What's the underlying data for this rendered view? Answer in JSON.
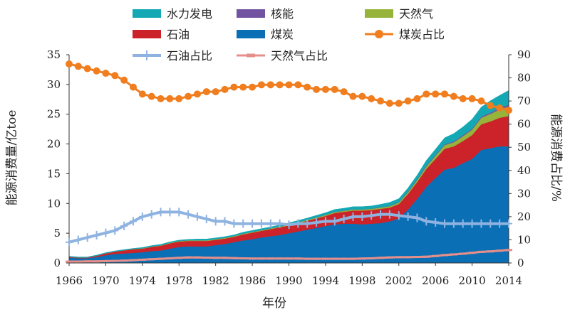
{
  "chart_data": {
    "type": "area",
    "xlabel": "年份",
    "ylabel_left": "能源消费量/亿toe",
    "ylabel_right": "能源消费占比/%",
    "ylim_left": [
      0,
      35
    ],
    "ylim_right": [
      0,
      90
    ],
    "xlim": [
      1966,
      2014
    ],
    "x_ticks": [
      1966,
      1970,
      1974,
      1978,
      1982,
      1986,
      1990,
      1994,
      1998,
      2002,
      2006,
      2010,
      2014
    ],
    "y_left_ticks": [
      0,
      5,
      10,
      15,
      20,
      25,
      30,
      35
    ],
    "y_right_ticks": [
      0,
      10,
      20,
      30,
      40,
      50,
      60,
      70,
      80,
      90
    ],
    "legend_position": "top",
    "years": [
      1966,
      1967,
      1968,
      1969,
      1970,
      1971,
      1972,
      1973,
      1974,
      1975,
      1976,
      1977,
      1978,
      1979,
      1980,
      1981,
      1982,
      1983,
      1984,
      1985,
      1986,
      1987,
      1988,
      1989,
      1990,
      1991,
      1992,
      1993,
      1994,
      1995,
      1996,
      1997,
      1998,
      1999,
      2000,
      2001,
      2002,
      2003,
      2004,
      2005,
      2006,
      2007,
      2008,
      2009,
      2010,
      2011,
      2012,
      2013,
      2014
    ],
    "stack_series": [
      {
        "name": "煤炭",
        "color": "#0a6fb5",
        "values": [
          0.9,
          0.8,
          0.8,
          1.0,
          1.3,
          1.5,
          1.6,
          1.7,
          1.8,
          2.0,
          2.1,
          2.4,
          2.7,
          2.8,
          2.8,
          2.8,
          3.0,
          3.2,
          3.5,
          3.8,
          4.0,
          4.3,
          4.5,
          4.7,
          5.0,
          5.3,
          5.6,
          5.9,
          6.2,
          6.5,
          6.6,
          6.6,
          6.5,
          6.6,
          6.7,
          7.0,
          7.5,
          9.0,
          10.8,
          12.8,
          14.3,
          15.7,
          16.0,
          16.8,
          17.5,
          19.0,
          19.3,
          19.6,
          19.6
        ]
      },
      {
        "name": "石油",
        "color": "#cc2229",
        "values": [
          0.1,
          0.1,
          0.1,
          0.2,
          0.3,
          0.4,
          0.5,
          0.6,
          0.6,
          0.7,
          0.8,
          0.9,
          0.9,
          0.9,
          0.9,
          0.9,
          0.9,
          0.9,
          0.9,
          1.0,
          1.1,
          1.1,
          1.2,
          1.3,
          1.3,
          1.4,
          1.5,
          1.6,
          1.7,
          1.9,
          2.0,
          2.2,
          2.3,
          2.3,
          2.4,
          2.3,
          2.4,
          2.6,
          2.8,
          3.0,
          3.2,
          3.5,
          3.6,
          3.7,
          4.0,
          4.3,
          4.5,
          4.8,
          5.1
        ]
      },
      {
        "name": "天然气",
        "color": "#96b43a",
        "values": [
          0.02,
          0.02,
          0.02,
          0.02,
          0.03,
          0.03,
          0.04,
          0.05,
          0.06,
          0.07,
          0.08,
          0.09,
          0.1,
          0.11,
          0.12,
          0.12,
          0.12,
          0.12,
          0.12,
          0.12,
          0.12,
          0.12,
          0.12,
          0.13,
          0.14,
          0.14,
          0.15,
          0.15,
          0.16,
          0.16,
          0.17,
          0.18,
          0.19,
          0.2,
          0.22,
          0.24,
          0.26,
          0.3,
          0.35,
          0.4,
          0.5,
          0.6,
          0.7,
          0.8,
          0.9,
          1.1,
          1.25,
          1.4,
          1.6
        ]
      },
      {
        "name": "核能",
        "color": "#7153a1",
        "values": [
          0,
          0,
          0,
          0,
          0,
          0,
          0,
          0,
          0,
          0,
          0,
          0,
          0,
          0,
          0,
          0,
          0,
          0,
          0,
          0,
          0,
          0,
          0,
          0,
          0,
          0,
          0,
          0,
          0.03,
          0.03,
          0.03,
          0.03,
          0.03,
          0.03,
          0.04,
          0.04,
          0.05,
          0.1,
          0.12,
          0.12,
          0.13,
          0.14,
          0.15,
          0.16,
          0.17,
          0.2,
          0.22,
          0.25,
          0.3
        ]
      },
      {
        "name": "水力发电",
        "color": "#13a8b4",
        "values": [
          0.1,
          0.1,
          0.1,
          0.1,
          0.1,
          0.1,
          0.1,
          0.1,
          0.15,
          0.15,
          0.15,
          0.15,
          0.15,
          0.15,
          0.2,
          0.2,
          0.2,
          0.2,
          0.2,
          0.25,
          0.25,
          0.25,
          0.25,
          0.25,
          0.3,
          0.3,
          0.3,
          0.35,
          0.35,
          0.4,
          0.4,
          0.45,
          0.45,
          0.45,
          0.5,
          0.6,
          0.6,
          0.6,
          0.7,
          0.9,
          1.0,
          1.1,
          1.3,
          1.4,
          1.6,
          1.6,
          2.0,
          2.1,
          2.4
        ]
      }
    ],
    "line_series": [
      {
        "name": "煤炭占比",
        "color": "#f07d1e",
        "marker": "circle",
        "values": [
          86,
          85,
          84,
          83,
          82,
          81,
          79,
          76,
          73,
          72,
          71,
          71,
          71,
          72,
          73,
          74,
          74,
          75,
          76,
          76,
          76,
          77,
          77,
          77,
          77,
          77,
          76,
          75,
          75,
          75,
          74,
          72,
          72,
          71,
          70,
          69,
          69,
          70,
          71,
          73,
          73,
          73,
          72,
          71,
          71,
          70,
          68,
          67,
          66
        ]
      },
      {
        "name": "石油占比",
        "color": "#8fb3e0",
        "marker": "plus",
        "values": [
          9,
          10,
          11,
          12,
          13,
          14,
          16,
          18,
          20,
          21,
          22,
          22,
          22,
          21,
          20,
          19,
          18,
          18,
          17,
          17,
          17,
          17,
          17,
          17,
          16.5,
          17,
          17,
          17.5,
          18,
          18,
          19,
          20,
          20,
          20.5,
          21,
          21,
          20.5,
          20,
          19.5,
          18,
          17.5,
          17,
          17,
          17,
          17,
          17,
          17,
          17,
          17
        ]
      },
      {
        "name": "天然气占比",
        "color": "#e58f8b",
        "marker": "dash",
        "values": [
          0.6,
          0.6,
          0.7,
          0.7,
          0.8,
          0.9,
          1.0,
          1.2,
          1.4,
          1.6,
          1.8,
          2.0,
          2.2,
          2.4,
          2.4,
          2.3,
          2.2,
          2.2,
          2.1,
          2.0,
          1.9,
          1.9,
          1.9,
          1.9,
          1.9,
          1.9,
          1.8,
          1.8,
          1.8,
          1.8,
          1.8,
          1.8,
          1.9,
          2.0,
          2.2,
          2.4,
          2.5,
          2.5,
          2.6,
          2.7,
          3.0,
          3.4,
          3.7,
          4.0,
          4.4,
          4.8,
          5.0,
          5.3,
          5.6
        ]
      }
    ]
  },
  "legend": {
    "items": [
      {
        "label": "水力发电",
        "color": "#13a8b4",
        "kind": "box"
      },
      {
        "label": "核能",
        "color": "#7153a1",
        "kind": "box"
      },
      {
        "label": "天然气",
        "color": "#96b43a",
        "kind": "box"
      },
      {
        "label": "石油",
        "color": "#cc2229",
        "kind": "box"
      },
      {
        "label": "煤炭",
        "color": "#0a6fb5",
        "kind": "box"
      },
      {
        "label": "煤炭占比",
        "color": "#f07d1e",
        "kind": "circle"
      },
      {
        "label": "石油占比",
        "color": "#8fb3e0",
        "kind": "plus"
      },
      {
        "label": "天然气占比",
        "color": "#e58f8b",
        "kind": "dash"
      }
    ]
  }
}
